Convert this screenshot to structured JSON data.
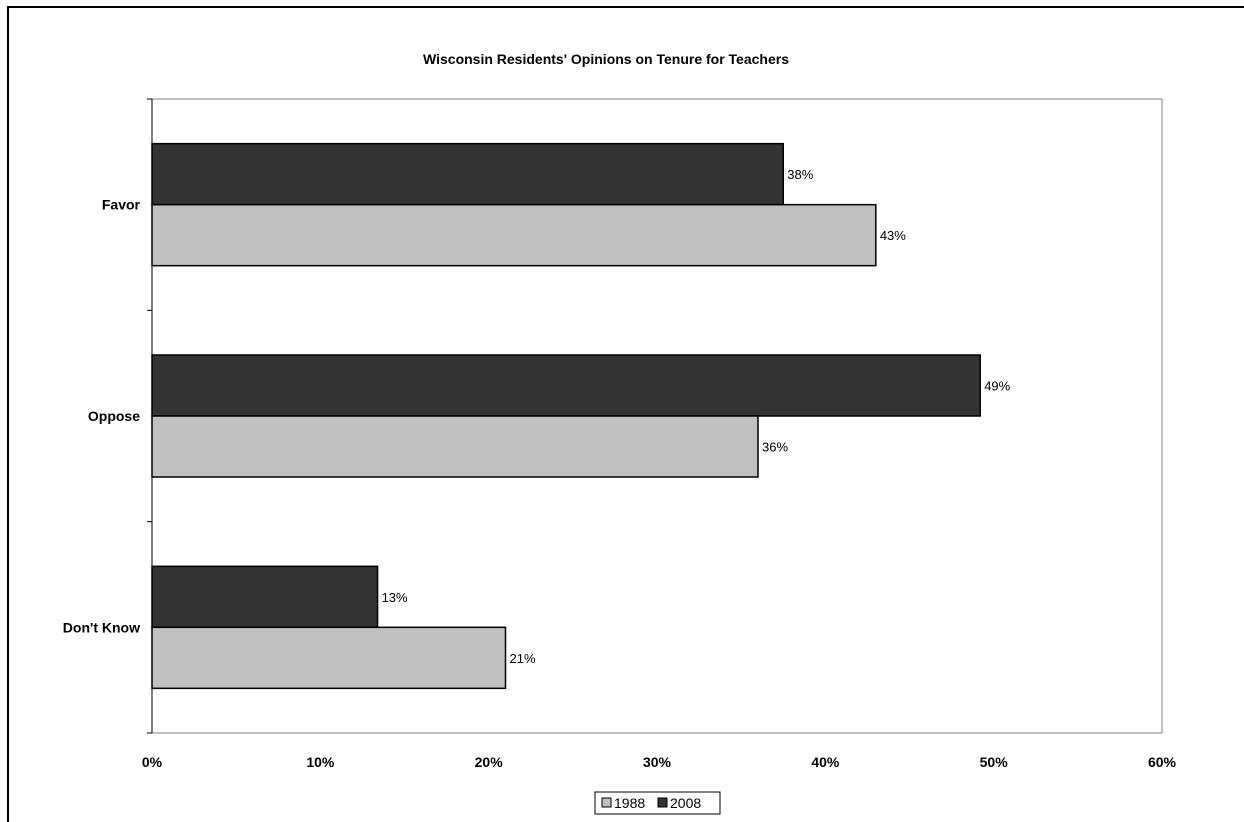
{
  "chart_data": {
    "type": "bar",
    "orientation": "horizontal",
    "title": "Wisconsin Residents' Opinions on Tenure for Teachers",
    "categories": [
      "Favor",
      "Oppose",
      "Don't Know"
    ],
    "series": [
      {
        "name": "1988",
        "color": "#c0c0c0",
        "values": [
          43,
          36,
          21
        ],
        "labels": [
          "43%",
          "36%",
          "21%"
        ]
      },
      {
        "name": "2008",
        "color": "#333333",
        "values": [
          37.5,
          49.2,
          13.4
        ],
        "labels": [
          "38%",
          "49%",
          "13%"
        ]
      }
    ],
    "xlim": [
      0,
      60
    ],
    "x_ticks": [
      0,
      10,
      20,
      30,
      40,
      50,
      60
    ],
    "x_tick_labels": [
      "0%",
      "10%",
      "20%",
      "30%",
      "40%",
      "50%",
      "60%"
    ],
    "grid": false,
    "legend": {
      "position": "bottom",
      "entries": [
        "1988",
        "2008"
      ]
    }
  }
}
